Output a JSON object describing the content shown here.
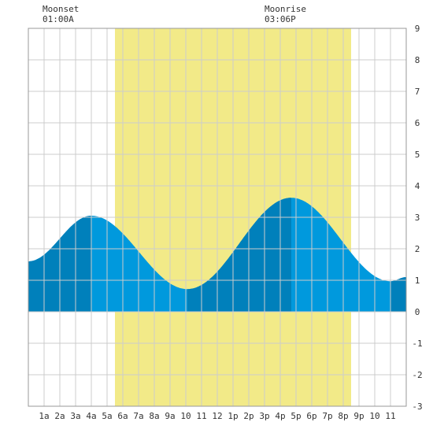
{
  "moonset": {
    "label": "Moonset",
    "time": "01:00A"
  },
  "moonrise": {
    "label": "Moonrise",
    "time": "03:06P"
  },
  "colors": {
    "daylight": "#f2ea88",
    "tide_light": "#0099dd",
    "tide_dark": "#0080bb",
    "grid": "#cccccc",
    "frame": "#999999",
    "background": "#ffffff"
  },
  "chart_data": {
    "type": "area",
    "title": "",
    "xlabel": "",
    "ylabel": "",
    "x_tick_labels": [
      "1a",
      "2a",
      "3a",
      "4a",
      "5a",
      "6a",
      "7a",
      "8a",
      "9a",
      "10",
      "11",
      "12",
      "1p",
      "2p",
      "3p",
      "4p",
      "5p",
      "6p",
      "7p",
      "8p",
      "9p",
      "10",
      "11"
    ],
    "x_tick_hours": [
      1,
      2,
      3,
      4,
      5,
      6,
      7,
      8,
      9,
      10,
      11,
      12,
      13,
      14,
      15,
      16,
      17,
      18,
      19,
      20,
      21,
      22,
      23
    ],
    "xlim_hours": [
      0,
      24
    ],
    "ylim": [
      -3,
      9
    ],
    "y_ticks": [
      -3,
      -2,
      -1,
      0,
      1,
      2,
      3,
      4,
      5,
      6,
      7,
      8,
      9
    ],
    "grid": true,
    "daylight_hours": [
      5.5,
      20.5
    ],
    "dark_bands_hours": [
      [
        0,
        4
      ],
      [
        10.1,
        16.7
      ],
      [
        23,
        24
      ]
    ],
    "tide_extremes": [
      {
        "hour": 0,
        "height": 1.6
      },
      {
        "hour": 4,
        "height": 3.05
      },
      {
        "hour": 10.1,
        "height": 0.72
      },
      {
        "hour": 16.7,
        "height": 3.62
      },
      {
        "hour": 23,
        "height": 0.97
      },
      {
        "hour": 24,
        "height": 1.1
      }
    ]
  }
}
